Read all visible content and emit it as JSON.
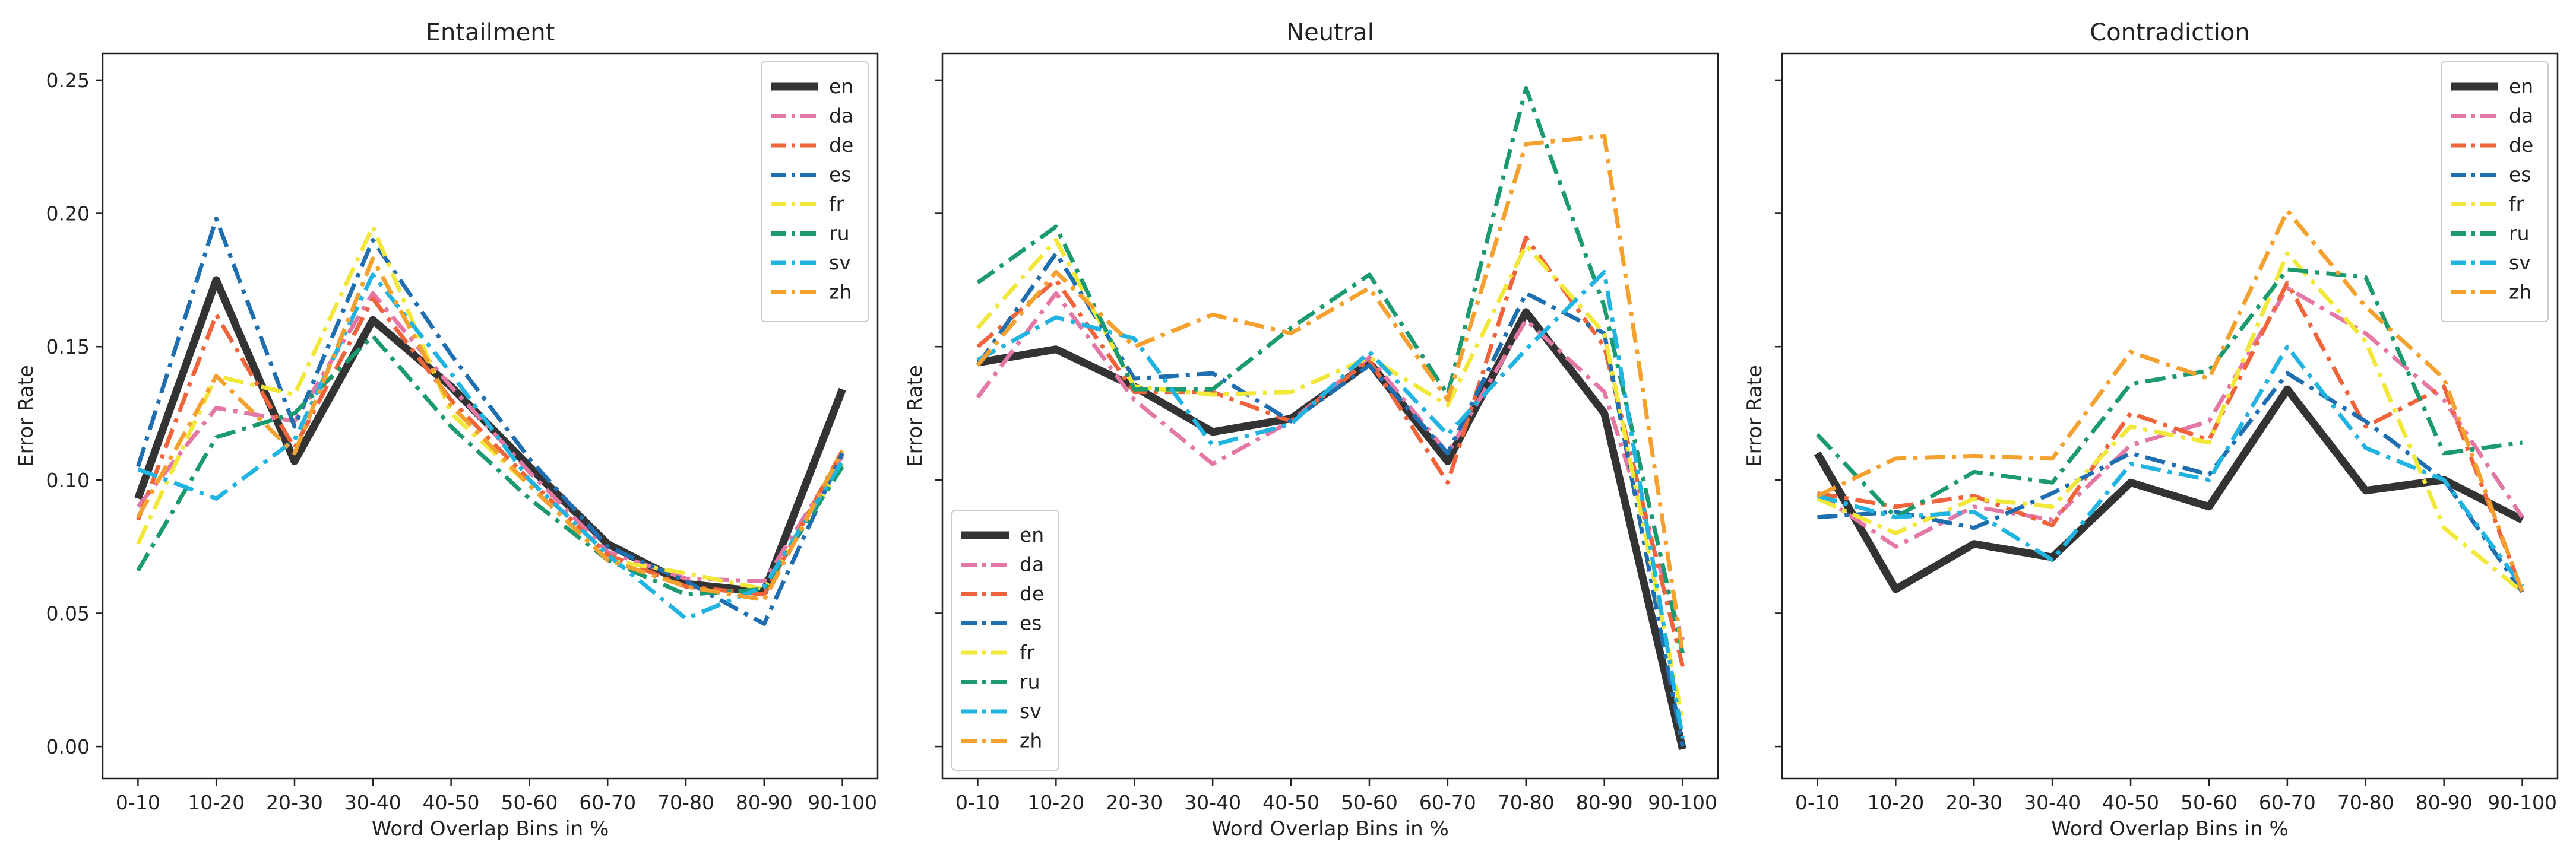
{
  "chart_data": {
    "type": "line",
    "xlabel": "Word Overlap Bins in %",
    "ylabel": "Error Rate",
    "ylim": [
      -0.012,
      0.26
    ],
    "yticks": [
      "0.00",
      "0.05",
      "0.10",
      "0.15",
      "0.20",
      "0.25"
    ],
    "categories": [
      "0-10",
      "10-20",
      "20-30",
      "30-40",
      "40-50",
      "50-60",
      "60-70",
      "70-80",
      "80-90",
      "90-100"
    ],
    "series_styles": [
      {
        "name": "en",
        "color": "#333333",
        "dash": "solid"
      },
      {
        "name": "da",
        "color": "#e377a5",
        "dash": "dashdot"
      },
      {
        "name": "de",
        "color": "#f0643c",
        "dash": "dashdot"
      },
      {
        "name": "es",
        "color": "#1f6fb0",
        "dash": "dashdot"
      },
      {
        "name": "fr",
        "color": "#f2e83a",
        "dash": "dashdot"
      },
      {
        "name": "ru",
        "color": "#1a9a6e",
        "dash": "dashdot"
      },
      {
        "name": "sv",
        "color": "#22b4e0",
        "dash": "dashdot"
      },
      {
        "name": "zh",
        "color": "#f5a12f",
        "dash": "dashdot"
      }
    ],
    "panels": [
      {
        "title": "Entailment",
        "legend_position": "top-right",
        "series": [
          {
            "name": "en",
            "values": [
              0.093,
              0.175,
              0.107,
              0.16,
              0.135,
              0.105,
              0.076,
              0.061,
              0.058,
              0.134
            ]
          },
          {
            "name": "da",
            "values": [
              0.09,
              0.127,
              0.122,
              0.17,
              0.135,
              0.103,
              0.073,
              0.063,
              0.062,
              0.109
            ]
          },
          {
            "name": "de",
            "values": [
              0.085,
              0.162,
              0.112,
              0.168,
              0.13,
              0.1,
              0.072,
              0.06,
              0.057,
              0.111
            ]
          },
          {
            "name": "es",
            "values": [
              0.105,
              0.198,
              0.12,
              0.19,
              0.147,
              0.108,
              0.075,
              0.062,
              0.046,
              0.11
            ]
          },
          {
            "name": "fr",
            "values": [
              0.076,
              0.139,
              0.132,
              0.195,
              0.125,
              0.098,
              0.07,
              0.065,
              0.059,
              0.106
            ]
          },
          {
            "name": "ru",
            "values": [
              0.066,
              0.116,
              0.125,
              0.154,
              0.12,
              0.093,
              0.07,
              0.057,
              0.059,
              0.105
            ]
          },
          {
            "name": "sv",
            "values": [
              0.104,
              0.093,
              0.115,
              0.177,
              0.14,
              0.1,
              0.072,
              0.048,
              0.06,
              0.107
            ]
          },
          {
            "name": "zh",
            "values": [
              0.086,
              0.139,
              0.11,
              0.183,
              0.128,
              0.098,
              0.07,
              0.06,
              0.055,
              0.111
            ]
          }
        ]
      },
      {
        "title": "Neutral",
        "legend_position": "lower-left",
        "series": [
          {
            "name": "en",
            "values": [
              0.144,
              0.149,
              0.135,
              0.118,
              0.123,
              0.144,
              0.107,
              0.163,
              0.125,
              -0.001
            ]
          },
          {
            "name": "da",
            "values": [
              0.131,
              0.17,
              0.13,
              0.106,
              0.122,
              0.146,
              0.11,
              0.16,
              0.133,
              0.04
            ]
          },
          {
            "name": "de",
            "values": [
              0.15,
              0.175,
              0.133,
              0.133,
              0.122,
              0.145,
              0.099,
              0.191,
              0.15,
              0.03
            ]
          },
          {
            "name": "es",
            "values": [
              0.143,
              0.185,
              0.138,
              0.14,
              0.122,
              0.143,
              0.11,
              0.17,
              0.155,
              0.0
            ]
          },
          {
            "name": "fr",
            "values": [
              0.157,
              0.19,
              0.135,
              0.132,
              0.133,
              0.146,
              0.128,
              0.188,
              0.155,
              0.01
            ]
          },
          {
            "name": "ru",
            "values": [
              0.174,
              0.195,
              0.134,
              0.134,
              0.157,
              0.177,
              0.132,
              0.247,
              0.165,
              0.035
            ]
          },
          {
            "name": "sv",
            "values": [
              0.145,
              0.161,
              0.153,
              0.113,
              0.121,
              0.148,
              0.117,
              0.149,
              0.178,
              0.003
            ]
          },
          {
            "name": "zh",
            "values": [
              0.143,
              0.178,
              0.15,
              0.162,
              0.155,
              0.172,
              0.13,
              0.226,
              0.229,
              0.035
            ]
          }
        ]
      },
      {
        "title": "Contradiction",
        "legend_position": "top-right",
        "series": [
          {
            "name": "en",
            "values": [
              0.11,
              0.059,
              0.076,
              0.071,
              0.099,
              0.09,
              0.134,
              0.096,
              0.1,
              0.085
            ]
          },
          {
            "name": "da",
            "values": [
              0.095,
              0.075,
              0.09,
              0.085,
              0.113,
              0.122,
              0.172,
              0.155,
              0.13,
              0.086
            ]
          },
          {
            "name": "de",
            "values": [
              0.095,
              0.09,
              0.094,
              0.083,
              0.125,
              0.115,
              0.174,
              0.12,
              0.135,
              0.058
            ]
          },
          {
            "name": "es",
            "values": [
              0.086,
              0.088,
              0.082,
              0.095,
              0.11,
              0.102,
              0.14,
              0.122,
              0.1,
              0.058
            ]
          },
          {
            "name": "fr",
            "values": [
              0.093,
              0.08,
              0.093,
              0.09,
              0.12,
              0.114,
              0.185,
              0.152,
              0.082,
              0.058
            ]
          },
          {
            "name": "ru",
            "values": [
              0.117,
              0.086,
              0.103,
              0.099,
              0.136,
              0.141,
              0.179,
              0.176,
              0.11,
              0.114
            ]
          },
          {
            "name": "sv",
            "values": [
              0.094,
              0.086,
              0.088,
              0.07,
              0.106,
              0.1,
              0.15,
              0.112,
              0.1,
              0.06
            ]
          },
          {
            "name": "zh",
            "values": [
              0.094,
              0.108,
              0.109,
              0.108,
              0.148,
              0.138,
              0.201,
              0.165,
              0.138,
              0.058
            ]
          }
        ]
      }
    ]
  }
}
